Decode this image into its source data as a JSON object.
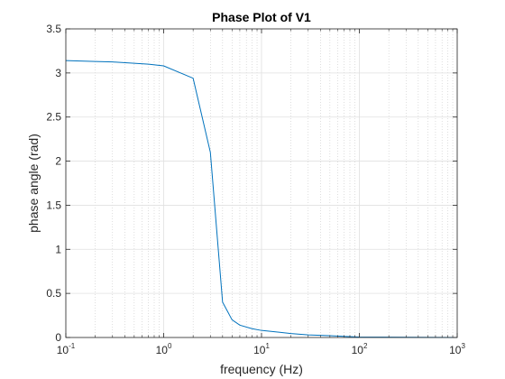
{
  "chart_data": {
    "type": "line",
    "title": "Phase Plot of V1",
    "xlabel": "frequency (Hz)",
    "ylabel": "phase angle (rad)",
    "xscale": "log",
    "xlim": [
      0.1,
      1000
    ],
    "ylim": [
      0,
      3.5
    ],
    "grid": true,
    "minor_grid": true,
    "x_ticks": [
      {
        "base": "10",
        "exp": "-1",
        "value": 0.1
      },
      {
        "base": "10",
        "exp": "0",
        "value": 1
      },
      {
        "base": "10",
        "exp": "1",
        "value": 10
      },
      {
        "base": "10",
        "exp": "2",
        "value": 100
      },
      {
        "base": "10",
        "exp": "3",
        "value": 1000
      }
    ],
    "y_ticks": [
      {
        "label": "0",
        "value": 0
      },
      {
        "label": "0.5",
        "value": 0.5
      },
      {
        "label": "1",
        "value": 1
      },
      {
        "label": "1.5",
        "value": 1.5
      },
      {
        "label": "2",
        "value": 2
      },
      {
        "label": "2.5",
        "value": 2.5
      },
      {
        "label": "3",
        "value": 3
      },
      {
        "label": "3.5",
        "value": 3.5
      }
    ],
    "series": [
      {
        "color": "#0072BD",
        "x": [
          0.1,
          0.2,
          0.3,
          0.5,
          0.7,
          1,
          2,
          3,
          4,
          5,
          6,
          8,
          10,
          15,
          20,
          30,
          50,
          100,
          1000
        ],
        "y": [
          3.14,
          3.13,
          3.125,
          3.11,
          3.1,
          3.08,
          2.94,
          2.1,
          0.4,
          0.2,
          0.14,
          0.1,
          0.08,
          0.06,
          0.045,
          0.03,
          0.02,
          0.005,
          0.0
        ]
      }
    ]
  }
}
